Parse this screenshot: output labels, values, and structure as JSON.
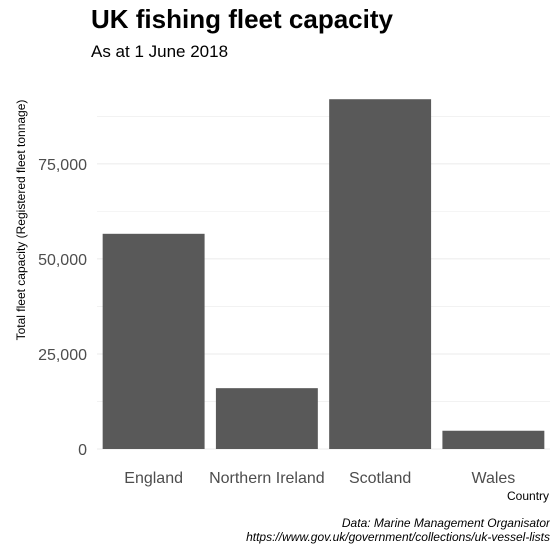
{
  "chart_data": {
    "type": "bar",
    "title": "UK fishing fleet capacity",
    "subtitle": "As at 1 June 2018",
    "xlabel": "Country",
    "ylabel": "Total fleet capacity (Registered fleet tonnage)",
    "categories": [
      "England",
      "Northern Ireland",
      "Scotland",
      "Wales"
    ],
    "values": [
      56600,
      16000,
      92000,
      4800
    ],
    "yticks": [
      0,
      25000,
      50000,
      75000
    ],
    "ytick_labels": [
      "0",
      "25,000",
      "50,000",
      "75,000"
    ],
    "ylim": [
      0,
      96000
    ],
    "grid": true,
    "bar_color": "#595959",
    "grid_color": "#ebebeb",
    "caption": [
      "Data: Marine Management Organisator",
      "https://www.gov.uk/government/collections/uk-vessel-lists"
    ]
  }
}
